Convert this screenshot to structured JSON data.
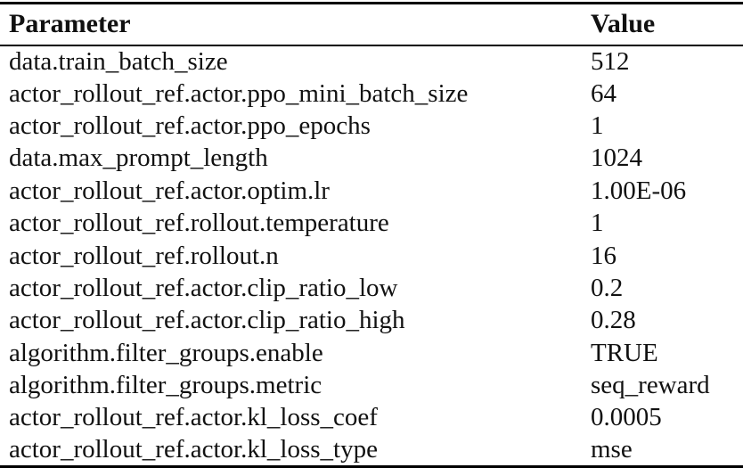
{
  "table": {
    "columns": [
      "Parameter",
      "Value"
    ],
    "rows": [
      {
        "parameter": "data.train_batch_size",
        "value": "512"
      },
      {
        "parameter": "actor_rollout_ref.actor.ppo_mini_batch_size",
        "value": "64"
      },
      {
        "parameter": "actor_rollout_ref.actor.ppo_epochs",
        "value": "1"
      },
      {
        "parameter": "data.max_prompt_length",
        "value": "1024"
      },
      {
        "parameter": "actor_rollout_ref.actor.optim.lr",
        "value": "1.00E-06"
      },
      {
        "parameter": "actor_rollout_ref.rollout.temperature",
        "value": "1"
      },
      {
        "parameter": "actor_rollout_ref.rollout.n",
        "value": "16"
      },
      {
        "parameter": "actor_rollout_ref.actor.clip_ratio_low",
        "value": "0.2"
      },
      {
        "parameter": "actor_rollout_ref.actor.clip_ratio_high",
        "value": "0.28"
      },
      {
        "parameter": "algorithm.filter_groups.enable",
        "value": "TRUE"
      },
      {
        "parameter": "algorithm.filter_groups.metric",
        "value": "seq_reward"
      },
      {
        "parameter": "actor_rollout_ref.actor.kl_loss_coef",
        "value": "0.0005"
      },
      {
        "parameter": "actor_rollout_ref.actor.kl_loss_type",
        "value": "mse"
      }
    ],
    "colors": {
      "background": "#ffffff",
      "text": "#111111",
      "rule": "#000000"
    }
  }
}
